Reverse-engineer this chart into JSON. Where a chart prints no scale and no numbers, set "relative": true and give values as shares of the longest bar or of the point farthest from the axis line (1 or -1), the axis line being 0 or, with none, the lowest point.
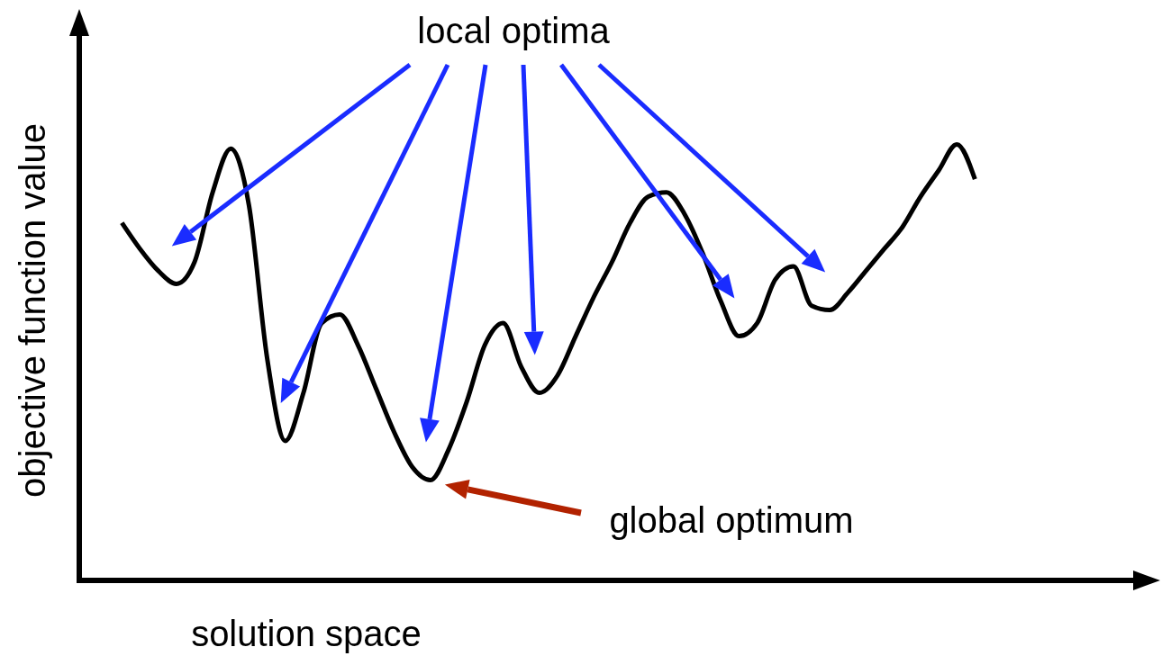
{
  "chart_data": {
    "type": "line",
    "relative": true,
    "color": "#000000",
    "categories": [
      null,
      null,
      null,
      null,
      null,
      null,
      null,
      null,
      null,
      null,
      null,
      null,
      null,
      null,
      null,
      null,
      null,
      null,
      null,
      null,
      null,
      null,
      null,
      null,
      null,
      null,
      null,
      null,
      null,
      null,
      null,
      null,
      null,
      null,
      null,
      null,
      null,
      null,
      null,
      null,
      null,
      null,
      null,
      null,
      null,
      null,
      null,
      null
    ],
    "values": [
      0.82,
      0.76,
      0.71,
      0.68,
      0.73,
      0.89,
      0.99,
      0.86,
      0.51,
      0.32,
      0.43,
      0.59,
      0.61,
      0.54,
      0.44,
      0.34,
      0.26,
      0.23,
      0.3,
      0.41,
      0.54,
      0.59,
      0.49,
      0.43,
      0.47,
      0.56,
      0.65,
      0.73,
      0.82,
      0.88,
      0.89,
      0.84,
      0.75,
      0.64,
      0.56,
      0.59,
      0.69,
      0.72,
      0.63,
      0.62,
      0.66,
      0.71,
      0.76,
      0.81,
      0.88,
      0.94,
      1,
      0.92
    ],
    "xlabel": "solution space",
    "ylabel": "objective function value",
    "annotations": [
      "local optima",
      "global optimum"
    ]
  }
}
